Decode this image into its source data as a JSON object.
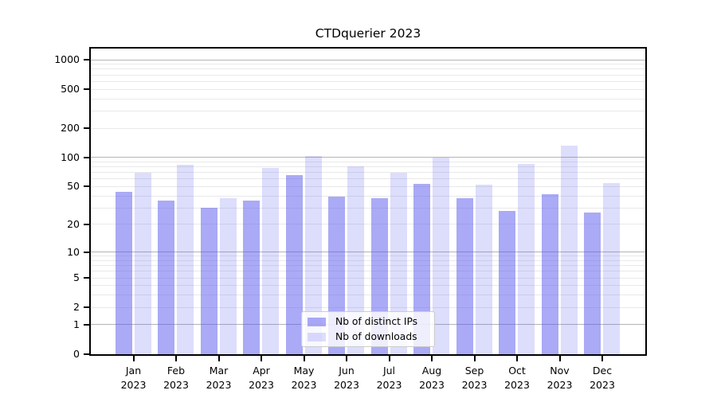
{
  "title": "CTDquerier 2023",
  "chart_data": {
    "type": "bar",
    "title": "CTDquerier 2023",
    "categories": [
      "Jan",
      "Feb",
      "Mar",
      "Apr",
      "May",
      "Jun",
      "Jul",
      "Aug",
      "Sep",
      "Oct",
      "Nov",
      "Dec"
    ],
    "category_year": "2023",
    "series": [
      {
        "name": "Nb of distinct IPs",
        "color": "rgba(85,85,238,0.5)",
        "values": [
          44,
          36,
          30,
          36,
          66,
          39,
          38,
          53,
          38,
          28,
          42,
          27
        ]
      },
      {
        "name": "Nb of downloads",
        "color": "rgba(85,85,238,0.2)",
        "values": [
          70,
          84,
          38,
          78,
          103,
          81,
          69,
          99,
          52,
          86,
          133,
          54
        ]
      }
    ],
    "y_axis": {
      "scale": "log1p",
      "ylim": [
        0,
        1100
      ],
      "labeled_ticks": [
        0,
        1,
        2,
        5,
        10,
        20,
        50,
        100,
        200,
        500,
        1000
      ],
      "major_gridlines": [
        1,
        10,
        100,
        1000
      ],
      "minor_gridlines": [
        2,
        3,
        4,
        5,
        6,
        7,
        8,
        9,
        20,
        30,
        40,
        50,
        60,
        70,
        80,
        90,
        200,
        300,
        400,
        500,
        600,
        700,
        800,
        900
      ]
    },
    "grid": "on",
    "legend_position": "bottom-center"
  },
  "colors": {
    "major_gridline": "#b4b4b4",
    "minor_gridline": "#e9e9e9",
    "axis": "#000000"
  }
}
